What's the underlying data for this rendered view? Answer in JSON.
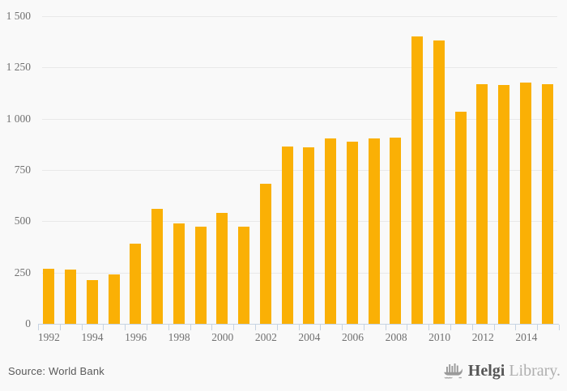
{
  "chart_data": {
    "type": "bar",
    "title": "",
    "xlabel": "",
    "ylabel": "",
    "categories": [
      "1992",
      "1993",
      "1994",
      "1995",
      "1996",
      "1997",
      "1998",
      "1999",
      "2000",
      "2001",
      "2002",
      "2003",
      "2004",
      "2005",
      "2006",
      "2007",
      "2008",
      "2009",
      "2010",
      "2011",
      "2012",
      "2013",
      "2014",
      "2015"
    ],
    "values": [
      270,
      265,
      215,
      240,
      390,
      560,
      490,
      475,
      540,
      475,
      685,
      865,
      860,
      905,
      890,
      905,
      910,
      1400,
      1380,
      1035,
      1170,
      1165,
      1175,
      1170
    ],
    "ylim": [
      0,
      1500
    ],
    "ytick_step": 250,
    "yticks": [
      {
        "value": 0,
        "label": "0"
      },
      {
        "value": 250,
        "label": "250"
      },
      {
        "value": 500,
        "label": "500"
      },
      {
        "value": 750,
        "label": "750"
      },
      {
        "value": 1000,
        "label": "1 000"
      },
      {
        "value": 1250,
        "label": "1 250"
      },
      {
        "value": 1500,
        "label": "1 500"
      }
    ],
    "x_labeled_years": [
      "1992",
      "1994",
      "1996",
      "1998",
      "2000",
      "2002",
      "2004",
      "2006",
      "2008",
      "2010",
      "2012",
      "2014"
    ],
    "grid": "horizontal",
    "legend": "none",
    "colors": {
      "bar": "#fab005",
      "grid": "#e9e9e9",
      "axis": "#c6d3e3",
      "tick_text": "#707070",
      "background": "#f9f9f9"
    }
  },
  "footer": {
    "source_label": "Source: World Bank",
    "logo": {
      "icon": "helgi-ship-icon",
      "brand_bold": "Helgi",
      "brand_light": "Library."
    }
  }
}
